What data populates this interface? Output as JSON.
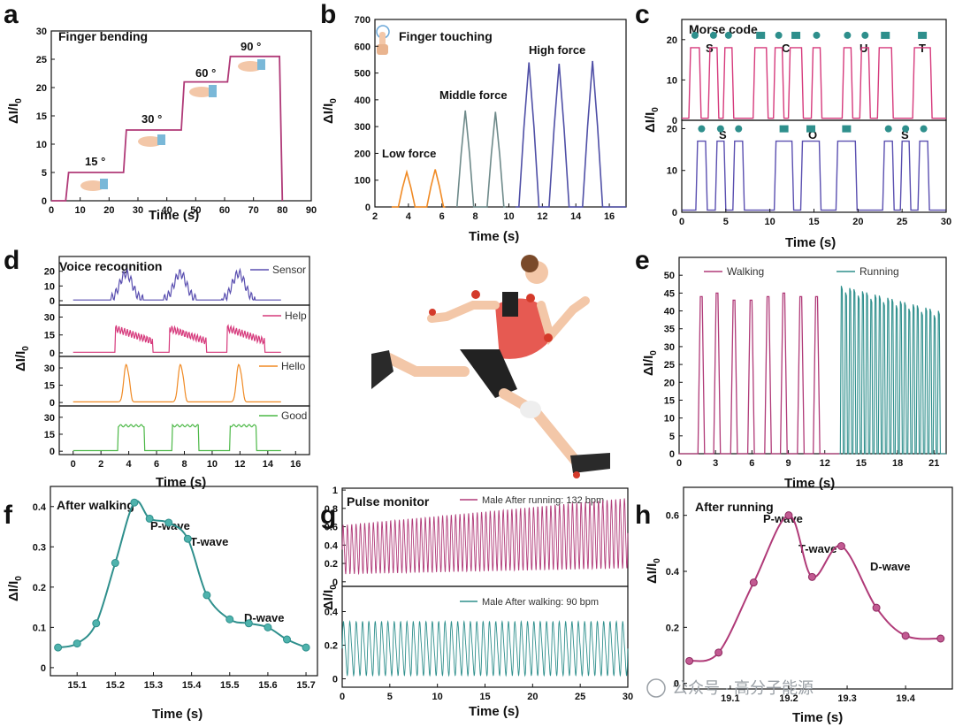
{
  "colors": {
    "purple": "#b03a78",
    "pink": "#d63a7c",
    "blue": "#5a4fb0",
    "teal": "#2e8f8c",
    "orange": "#f08a24",
    "green": "#4cb847",
    "gray": "#6e8a8a",
    "indigo": "#4f4fa6"
  },
  "chart_data": [
    {
      "panel": "a",
      "type": "line",
      "title": "Finger bending",
      "xlabel": "Time (s)",
      "ylabel": "ΔI/I0",
      "xlim": [
        0,
        90
      ],
      "ylim": [
        0,
        30
      ],
      "xticks": [
        0,
        10,
        20,
        30,
        40,
        50,
        60,
        70,
        80,
        90
      ],
      "yticks": [
        0,
        5,
        10,
        15,
        20,
        25,
        30
      ],
      "x": [
        0,
        5,
        6,
        25,
        26,
        45,
        46,
        61,
        62,
        79,
        80
      ],
      "y": [
        0,
        0,
        5,
        5,
        12.5,
        12.5,
        21,
        21,
        25.5,
        25.5,
        0
      ],
      "annotations": [
        {
          "text": "15 °",
          "x": 13,
          "y": 7
        },
        {
          "text": "30 °",
          "x": 33,
          "y": 14
        },
        {
          "text": "60 °",
          "x": 50,
          "y": 22.5
        },
        {
          "text": "90 °",
          "x": 66,
          "y": 27
        }
      ]
    },
    {
      "panel": "b",
      "type": "line",
      "title": "Finger touching",
      "xlabel": "Time (s)",
      "ylabel": "ΔI/I0",
      "xlim": [
        2,
        17
      ],
      "ylim": [
        0,
        700
      ],
      "xticks": [
        2,
        4,
        6,
        8,
        10,
        12,
        14,
        16
      ],
      "yticks": [
        0,
        100,
        200,
        300,
        400,
        500,
        600,
        700
      ],
      "series": [
        {
          "name": "Low force",
          "peaks": [
            {
              "x": 3.9,
              "y": 130
            },
            {
              "x": 5.6,
              "y": 140
            }
          ]
        },
        {
          "name": "Middle force",
          "peaks": [
            {
              "x": 7.4,
              "y": 360
            },
            {
              "x": 9.2,
              "y": 355
            }
          ]
        },
        {
          "name": "High force",
          "peaks": [
            {
              "x": 11.2,
              "y": 540
            },
            {
              "x": 13.0,
              "y": 535
            },
            {
              "x": 15.0,
              "y": 545
            }
          ]
        }
      ]
    },
    {
      "panel": "c",
      "type": "line",
      "title": "Morse code",
      "xlabel": "Time (s)",
      "ylabel": "ΔI/I0",
      "xlim": [
        0,
        30
      ],
      "xticks": [
        0,
        5,
        10,
        15,
        20,
        25,
        30
      ],
      "top": {
        "ylim": [
          0,
          25
        ],
        "yticks": [
          0,
          10,
          20
        ],
        "letters": [
          "S",
          "C",
          "U",
          "T"
        ],
        "pulses": [
          [
            1,
            2,
            "dot"
          ],
          [
            3.2,
            4,
            "dot"
          ],
          [
            4.9,
            5.7,
            "dot"
          ],
          [
            8.3,
            9.6,
            "dash"
          ],
          [
            10.6,
            11.4,
            "dot"
          ],
          [
            12.3,
            13.6,
            "dash"
          ],
          [
            14.9,
            15.7,
            "dot"
          ],
          [
            18.4,
            19.2,
            "dot"
          ],
          [
            20.4,
            21.2,
            "dot"
          ],
          [
            22.4,
            23.8,
            "dash"
          ],
          [
            26.4,
            28.2,
            "dash"
          ]
        ]
      },
      "bottom": {
        "ylim": [
          0,
          22
        ],
        "yticks": [
          0,
          10,
          20
        ],
        "letters": [
          "S",
          "O",
          "S"
        ],
        "pulses": [
          [
            1.8,
            2.7,
            "dot"
          ],
          [
            4,
            4.8,
            "dot"
          ],
          [
            6,
            6.9,
            "dot"
          ],
          [
            10.7,
            12.5,
            "dash"
          ],
          [
            13.7,
            15.6,
            "dash"
          ],
          [
            17.7,
            19.7,
            "dash"
          ],
          [
            23,
            23.9,
            "dot"
          ],
          [
            25,
            25.8,
            "dot"
          ],
          [
            27,
            27.9,
            "dot"
          ]
        ]
      }
    },
    {
      "panel": "d",
      "type": "line",
      "title": "Voice recognition",
      "xlabel": "Time (s)",
      "ylabel": "ΔI/I0",
      "xlim": [
        -1,
        17
      ],
      "xticks": [
        0,
        2,
        4,
        6,
        8,
        10,
        12,
        14,
        16
      ],
      "series": [
        {
          "name": "Sensor",
          "yticks": [
            0,
            10,
            20
          ],
          "ymax": 30
        },
        {
          "name": "Help",
          "yticks": [
            0,
            15,
            30
          ],
          "ymax": 40
        },
        {
          "name": "Hello",
          "yticks": [
            0,
            15,
            30
          ],
          "ymax": 40
        },
        {
          "name": "Good",
          "yticks": [
            0,
            15,
            30
          ],
          "ymax": 40
        }
      ]
    },
    {
      "panel": "e",
      "type": "line",
      "xlabel": "Time (s)",
      "ylabel": "ΔI/I0",
      "xlim": [
        0,
        22
      ],
      "ylim": [
        0,
        55
      ],
      "xticks": [
        0,
        3,
        6,
        9,
        12,
        15,
        18,
        21
      ],
      "yticks": [
        0,
        5,
        10,
        15,
        20,
        25,
        30,
        35,
        40,
        45,
        50
      ],
      "series": [
        {
          "name": "Walking",
          "peak_times": [
            1.9,
            3.2,
            4.6,
            6,
            7.4,
            8.7,
            10.1,
            11.4
          ],
          "peak_values": [
            44,
            45,
            43,
            43,
            44,
            45,
            44,
            44
          ]
        },
        {
          "name": "Running",
          "start": 13.4,
          "end": 21.4,
          "count": 24,
          "max": 47,
          "min": 40
        }
      ]
    },
    {
      "panel": "f",
      "type": "line",
      "title": "After walking",
      "xlabel": "Time (s)",
      "ylabel": "ΔI/I0",
      "xlim": [
        15.03,
        15.73
      ],
      "ylim": [
        -0.02,
        0.45
      ],
      "xticks": [
        15.1,
        15.2,
        15.3,
        15.4,
        15.5,
        15.6,
        15.7
      ],
      "yticks": [
        0,
        0.1,
        0.2,
        0.3,
        0.4
      ],
      "x": [
        15.05,
        15.1,
        15.15,
        15.2,
        15.25,
        15.29,
        15.34,
        15.39,
        15.44,
        15.5,
        15.55,
        15.6,
        15.65,
        15.7
      ],
      "y": [
        0.05,
        0.06,
        0.11,
        0.26,
        0.41,
        0.37,
        0.36,
        0.32,
        0.18,
        0.12,
        0.11,
        0.1,
        0.07,
        0.05
      ],
      "annotations": [
        "P-wave",
        "T-wave",
        "D-wave"
      ]
    },
    {
      "panel": "g",
      "type": "line",
      "title": "Pulse monitor",
      "xlabel": "Time (s)",
      "ylabel": "ΔI/I0",
      "xlim": [
        0,
        30
      ],
      "xticks": [
        0,
        5,
        10,
        15,
        20,
        25,
        30
      ],
      "series": [
        {
          "name": "Male After running: 132 bpm",
          "yticks": [
            0.0,
            0.2,
            0.4,
            0.6,
            0.8,
            1.0
          ],
          "ylim": [
            -0.05,
            1.02
          ]
        },
        {
          "name": "Male After walking: 90 bpm",
          "yticks": [
            0.0,
            0.2,
            0.4
          ],
          "ylim": [
            -0.05,
            0.55
          ]
        }
      ]
    },
    {
      "panel": "h",
      "type": "line",
      "title": "After running",
      "xlabel": "Time (s)",
      "ylabel": "ΔI/I0",
      "xlim": [
        19.02,
        19.48
      ],
      "ylim": [
        -0.02,
        0.7
      ],
      "xticks": [
        19.1,
        19.2,
        19.3,
        19.4
      ],
      "yticks": [
        0,
        0.2,
        0.4,
        0.6
      ],
      "x": [
        19.03,
        19.08,
        19.14,
        19.2,
        19.24,
        19.29,
        19.35,
        19.4,
        19.46
      ],
      "y": [
        0.08,
        0.11,
        0.36,
        0.6,
        0.38,
        0.49,
        0.27,
        0.17,
        0.16
      ],
      "annotations": [
        "P-wave",
        "T-wave",
        "D-wave"
      ]
    }
  ],
  "panels": {
    "a": "a",
    "b": "b",
    "c": "c",
    "d": "d",
    "e": "e",
    "f": "f",
    "g": "g",
    "h": "h"
  },
  "text": {
    "a_title": "Finger bending",
    "a_15": "15 °",
    "a_30": "30 °",
    "a_60": "60 °",
    "a_90": "90 °",
    "b_title": "Finger touching",
    "b_low": "Low force",
    "b_mid": "Middle force",
    "b_high": "High force",
    "c_title": "Morse code",
    "c_S1": "S",
    "c_C": "C",
    "c_U": "U",
    "c_T": "T",
    "c_S2": "S",
    "c_O": "O",
    "c_S3": "S",
    "d_title": "Voice recognition",
    "d_sensor": "Sensor",
    "d_help": "Help",
    "d_hello": "Hello",
    "d_good": "Good",
    "e_walking": "Walking",
    "e_running": "Running",
    "f_title": "After walking",
    "f_p": "P-wave",
    "f_t": "T-wave",
    "f_d": "D-wave",
    "g_title": "Pulse monitor",
    "g_run": "Male After running: 132 bpm",
    "g_walk": "Male After walking: 90 bpm",
    "h_title": "After running",
    "h_p": "P-wave",
    "h_t": "T-wave",
    "h_d": "D-wave",
    "time": "Time (s)",
    "ylabel_main": "ΔI/I",
    "ylabel_sub": "0",
    "watermark": "公众号 · 高分子能源"
  }
}
